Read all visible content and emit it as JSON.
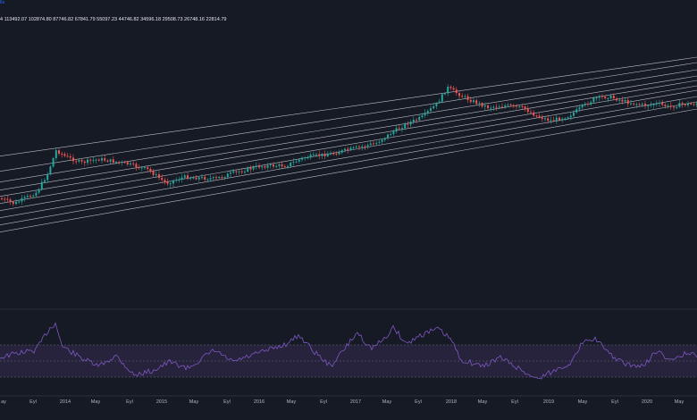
{
  "header": {
    "symbol_fragment": "lls",
    "prices": "4  113492.07  102874.80  87746.82  67841.79  55097.23  44746.82  34596.18  29508.73  26748.16  22814.79"
  },
  "colors": {
    "background": "#161a25",
    "up_candle": "#26a69a",
    "down_candle": "#ef5350",
    "band_line": "#d7d9df",
    "rsi_line": "#7e57c2",
    "rsi_fill": "#2a2540"
  },
  "x_axis": {
    "ticks": [
      "ay",
      "Eyl",
      "2014",
      "May",
      "Eyl",
      "2015",
      "May",
      "Eyl",
      "2016",
      "May",
      "Eyl",
      "2017",
      "May",
      "Eyl",
      "2018",
      "May",
      "Eyl",
      "2019",
      "May",
      "Eyl",
      "2020",
      "May"
    ]
  },
  "rsi": {
    "upper": 70,
    "lower": 30
  }
}
